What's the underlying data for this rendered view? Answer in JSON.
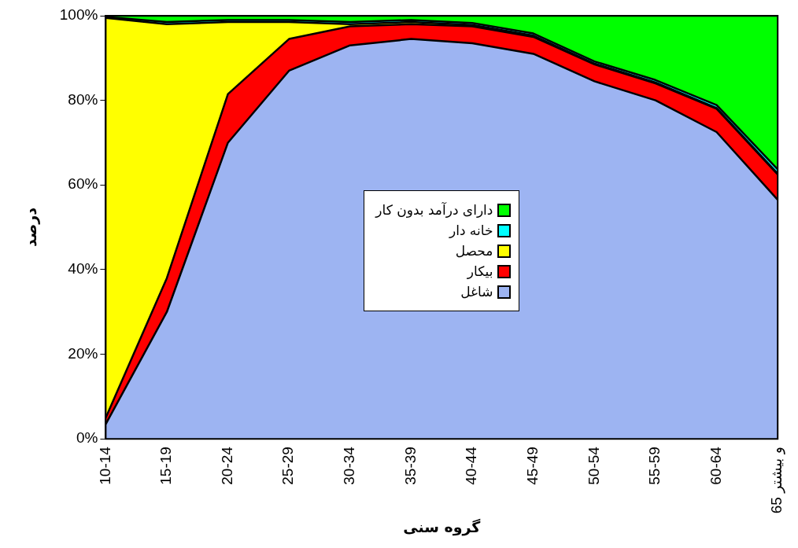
{
  "chart_data": {
    "type": "area",
    "stacked": true,
    "xlabel": "گروه سنی",
    "ylabel": "درصد",
    "categories": [
      "10-14",
      "15-19",
      "20-24",
      "25-29",
      "30-34",
      "35-39",
      "40-44",
      "45-49",
      "50-54",
      "55-59",
      "60-64",
      "65 و بیشتر"
    ],
    "series": [
      {
        "name": "شاغل",
        "color": "#9db4f2",
        "values": [
          3.5,
          30,
          70,
          87,
          93,
          94.5,
          93.5,
          91,
          84.5,
          80,
          72.5,
          56.5
        ]
      },
      {
        "name": "بیکار",
        "color": "#ff0000",
        "values": [
          1.5,
          8,
          11.5,
          7.5,
          4.5,
          3.5,
          4,
          4,
          4,
          4,
          5.5,
          6
        ]
      },
      {
        "name": "محصل",
        "color": "#ffff00",
        "values": [
          94.5,
          60,
          17,
          4,
          0.5,
          0.5,
          0.3,
          0.3,
          0.2,
          0.2,
          0.2,
          0.2
        ]
      },
      {
        "name": "خانه دار",
        "color": "#00ffff",
        "values": [
          0.2,
          0.5,
          0.5,
          0.5,
          0.5,
          0.5,
          0.5,
          0.5,
          0.5,
          0.6,
          0.7,
          1
        ]
      },
      {
        "name": "دارای درآمد بدون کار",
        "color": "#00ff00",
        "values": [
          0.3,
          1.5,
          1,
          1,
          1.5,
          1,
          1.7,
          4.2,
          10.8,
          15.2,
          21.1,
          36.3
        ]
      }
    ],
    "ylim": [
      0,
      100
    ],
    "yticks": [
      {
        "value": 0,
        "label": "0%"
      },
      {
        "value": 20,
        "label": "20%"
      },
      {
        "value": 40,
        "label": "40%"
      },
      {
        "value": 60,
        "label": "60%"
      },
      {
        "value": 80,
        "label": "80%"
      },
      {
        "value": 100,
        "label": "100%"
      }
    ],
    "grid": false,
    "legend": "center"
  }
}
